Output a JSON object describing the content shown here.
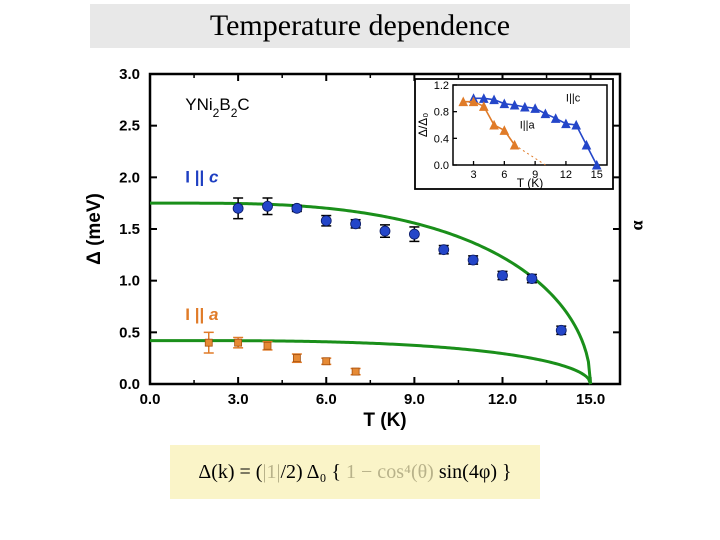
{
  "title": "Temperature dependence",
  "chart": {
    "type": "scatter+line",
    "background_color": "#ffffff",
    "plot_bg": "#ffffff",
    "frame_color": "#000000",
    "frame_width": 2.5,
    "compound_label": "YNi₂B₂C",
    "tick_color": "#000000",
    "tick_len": 7,
    "tick_width": 2,
    "x": {
      "label": "T (K)",
      "label_fontsize": 19,
      "label_fontweight": "bold",
      "min": 0.0,
      "max": 16.0,
      "ticks": [
        0.0,
        3.0,
        6.0,
        9.0,
        12.0,
        15.0
      ],
      "tick_fontsize": 15,
      "tick_fontweight": "bold"
    },
    "y": {
      "label": "Δ (meV)",
      "label_fontsize": 19,
      "label_fontweight": "bold",
      "min": 0.0,
      "max": 3.0,
      "ticks": [
        0.0,
        0.5,
        1.0,
        1.5,
        2.0,
        2.5,
        3.0
      ],
      "tick_fontsize": 15,
      "tick_fontweight": "bold"
    },
    "series": [
      {
        "name": "I || c",
        "label_text": "I || c",
        "label_color": "#1e3fc2",
        "label_xy": [
          1.2,
          1.95
        ],
        "marker": "circle",
        "marker_size": 7,
        "marker_color": "#2446c9",
        "error_bar_color": "#000000",
        "error_bar_halfwidth": 5,
        "points": [
          {
            "x": 3.0,
            "y": 1.7,
            "err": 0.1
          },
          {
            "x": 4.0,
            "y": 1.72,
            "err": 0.08
          },
          {
            "x": 5.0,
            "y": 1.7,
            "err": 0.03
          },
          {
            "x": 6.0,
            "y": 1.58,
            "err": 0.05
          },
          {
            "x": 7.0,
            "y": 1.55,
            "err": 0.04
          },
          {
            "x": 8.0,
            "y": 1.48,
            "err": 0.06
          },
          {
            "x": 9.0,
            "y": 1.45,
            "err": 0.07
          },
          {
            "x": 10.0,
            "y": 1.3,
            "err": 0.04
          },
          {
            "x": 11.0,
            "y": 1.2,
            "err": 0.04
          },
          {
            "x": 12.0,
            "y": 1.05,
            "err": 0.04
          },
          {
            "x": 13.0,
            "y": 1.02,
            "err": 0.04
          },
          {
            "x": 14.0,
            "y": 0.52,
            "err": 0.04
          }
        ]
      },
      {
        "name": "I || a",
        "label_text": "I || a",
        "label_color": "#e07b28",
        "label_xy": [
          1.2,
          0.62
        ],
        "marker": "square",
        "marker_size": 7,
        "marker_color": "#e68a35",
        "error_bar_color": "#e07b28",
        "error_bar_halfwidth": 5,
        "points": [
          {
            "x": 2.0,
            "y": 0.4,
            "err": 0.1
          },
          {
            "x": 3.0,
            "y": 0.4,
            "err": 0.05
          },
          {
            "x": 4.0,
            "y": 0.37,
            "err": 0.04
          },
          {
            "x": 5.0,
            "y": 0.25,
            "err": 0.04
          },
          {
            "x": 6.0,
            "y": 0.22,
            "err": 0.03
          },
          {
            "x": 7.0,
            "y": 0.12,
            "err": 0.03
          }
        ]
      }
    ],
    "curves": [
      {
        "name": "fit-c",
        "color": "#1a8f1a",
        "width": 3,
        "delta0": 1.75,
        "tc": 15.0
      },
      {
        "name": "fit-a",
        "color": "#1a8f1a",
        "width": 3,
        "delta0": 0.42,
        "tc": 15.0
      }
    ]
  },
  "inset": {
    "background_color": "#ffffff",
    "frame_color": "#000000",
    "frame_width": 1.8,
    "x": {
      "label": "T (K)",
      "min": 1,
      "max": 16,
      "ticks": [
        3,
        6,
        9,
        12,
        15
      ],
      "fontsize": 11
    },
    "y": {
      "label": "Δ/Δ₀",
      "min": 0.0,
      "max": 1.2,
      "ticks": [
        0.0,
        0.4,
        0.8,
        1.2
      ],
      "fontsize": 11
    },
    "series": [
      {
        "name": "I||c",
        "label": "I||c",
        "color": "#2446c9",
        "marker": "triangle",
        "line_width": 1.6,
        "points": [
          {
            "x": 3,
            "y": 1.0
          },
          {
            "x": 4,
            "y": 1.0
          },
          {
            "x": 5,
            "y": 0.98
          },
          {
            "x": 6,
            "y": 0.92
          },
          {
            "x": 7,
            "y": 0.9
          },
          {
            "x": 8,
            "y": 0.87
          },
          {
            "x": 9,
            "y": 0.85
          },
          {
            "x": 10,
            "y": 0.77
          },
          {
            "x": 11,
            "y": 0.7
          },
          {
            "x": 12,
            "y": 0.62
          },
          {
            "x": 13,
            "y": 0.6
          },
          {
            "x": 14,
            "y": 0.3
          },
          {
            "x": 15,
            "y": 0.0
          }
        ]
      },
      {
        "name": "I||a",
        "label": "I||a",
        "color": "#e07b28",
        "marker": "triangle",
        "line_width": 1.6,
        "points": [
          {
            "x": 2,
            "y": 0.95
          },
          {
            "x": 3,
            "y": 0.95
          },
          {
            "x": 4,
            "y": 0.88
          },
          {
            "x": 5,
            "y": 0.6
          },
          {
            "x": 6,
            "y": 0.52
          },
          {
            "x": 7,
            "y": 0.3
          }
        ],
        "dotted_tail": [
          {
            "x": 7,
            "y": 0.3
          },
          {
            "x": 10,
            "y": 0.0
          }
        ]
      }
    ]
  },
  "y2_label": "α",
  "formula": {
    "text_html": "Δ(k) = (<span class='fade'>|1|</span>/2) Δ₀ { <span class='fade'>1 − cos⁴(θ)</span> sin(4φ) }",
    "bg": "#faf4c8"
  }
}
